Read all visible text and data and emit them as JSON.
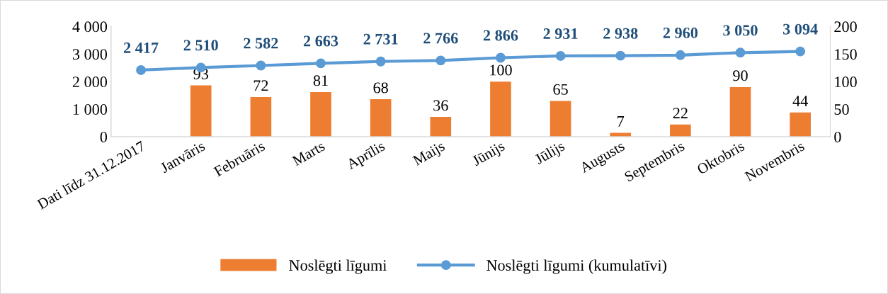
{
  "chart_data": {
    "type": "bar",
    "categories": [
      "Dati līdz 31.12.2017",
      "Janvāris",
      "Februāris",
      "Marts",
      "Aprīlis",
      "Maijs",
      "Jūnijs",
      "Jūlijs",
      "Augusts",
      "Septembris",
      "Oktobris",
      "Novembris"
    ],
    "series": [
      {
        "name": "Noslēgti līgumi",
        "axis": "y2",
        "color": "#ed7d31",
        "values": [
          null,
          93,
          72,
          81,
          68,
          36,
          100,
          65,
          7,
          22,
          90,
          44
        ]
      },
      {
        "name": "Noslēgti līgumi (kumulatīvi)",
        "type": "line",
        "axis": "y",
        "color": "#5b9bd5",
        "marker": "circle",
        "values": [
          2417,
          2510,
          2582,
          2663,
          2731,
          2766,
          2866,
          2931,
          2938,
          2960,
          3050,
          3094
        ],
        "value_labels": [
          "2 417",
          "2 510",
          "2 582",
          "2 663",
          "2 731",
          "2 766",
          "2 866",
          "2 931",
          "2 938",
          "2 960",
          "3 050",
          "3 094"
        ]
      }
    ],
    "ylim": [
      0,
      4000
    ],
    "yticks": [
      0,
      {
        "value": 1000,
        "label": "1 000"
      },
      {
        "value": 2000,
        "label": "2 000"
      },
      {
        "value": 3000,
        "label": "3 000"
      },
      {
        "value": 4000,
        "label": "4 000"
      }
    ],
    "y2lim": [
      0,
      200
    ],
    "y2ticks": [
      0,
      50,
      100,
      150,
      200
    ],
    "data_labels": true,
    "legend": "bottom",
    "grid": false
  }
}
